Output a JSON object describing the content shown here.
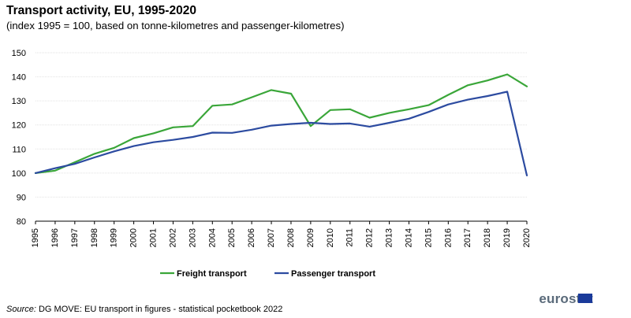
{
  "chart_data": {
    "type": "line",
    "title": "Transport activity, EU, 1995-2020",
    "subtitle": "(index 1995 = 100, based on tonne-kilometres and passenger-kilometres)",
    "x": [
      "1995",
      "1996",
      "1997",
      "1998",
      "1999",
      "2000",
      "2001",
      "2002",
      "2003",
      "2004",
      "2005",
      "2006",
      "2007",
      "2008",
      "2009",
      "2010",
      "2011",
      "2012",
      "2013",
      "2014",
      "2015",
      "2016",
      "2017",
      "2018",
      "2019",
      "2020"
    ],
    "ylim": [
      80,
      150
    ],
    "yticks": [
      80,
      90,
      100,
      110,
      120,
      130,
      140,
      150
    ],
    "grid": "horizontal",
    "legend_position": "bottom",
    "series": [
      {
        "name": "Freight transport",
        "color": "#3aa639",
        "values": [
          100,
          101,
          104.5,
          108,
          110.5,
          114.5,
          116.5,
          119,
          119.5,
          128,
          128.5,
          131.5,
          134.5,
          133,
          119.5,
          126.2,
          126.5,
          123,
          125,
          126.5,
          128.2,
          132.5,
          136.5,
          138.5,
          141,
          136
        ]
      },
      {
        "name": "Passenger transport",
        "color": "#2c4ba0",
        "values": [
          100,
          102,
          103.8,
          106.5,
          109,
          111.2,
          112.8,
          113.8,
          115,
          116.8,
          116.7,
          118,
          119.7,
          120.4,
          120.9,
          120.4,
          120.6,
          119.3,
          120.9,
          122.6,
          125.4,
          128.5,
          130.5,
          132,
          133.8,
          99
        ]
      }
    ]
  },
  "source": {
    "label": "Source:",
    "text": " DG MOVE: EU transport in figures - statistical pocketbook 2022"
  },
  "logo": {
    "text": "eurostat",
    "flag_color": "#1a3a9a"
  }
}
